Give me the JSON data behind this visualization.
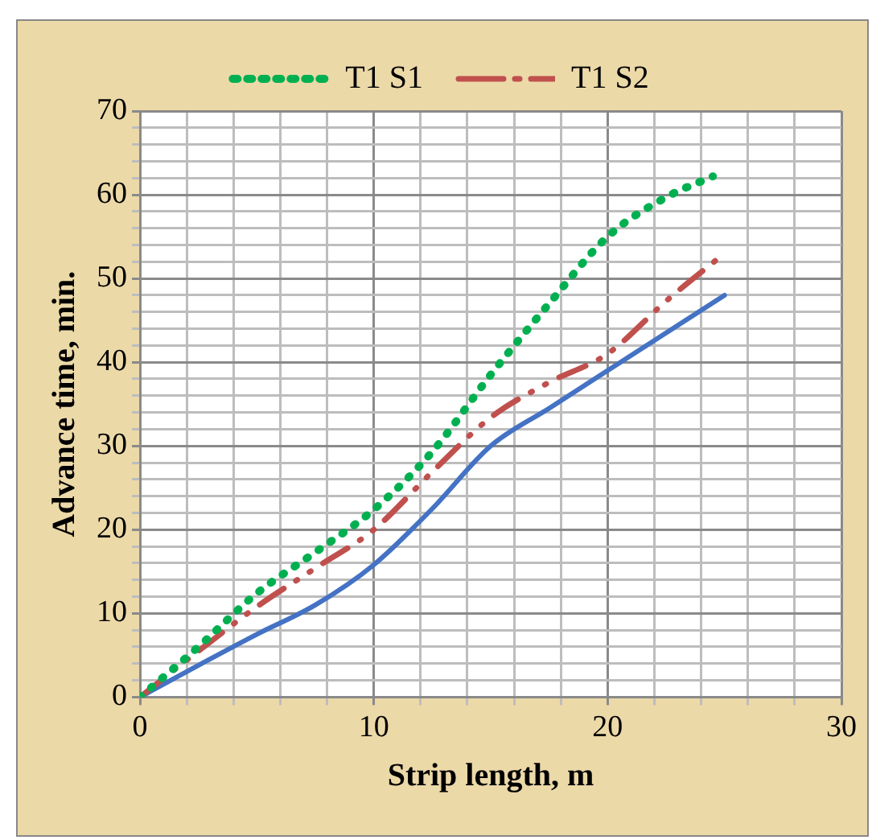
{
  "chart_data": {
    "type": "line",
    "xlabel": "Strip length, m",
    "ylabel": "Advance time, min.",
    "xlim": [
      0,
      30
    ],
    "ylim": [
      0,
      70
    ],
    "xticks": [
      0,
      {
        "value": 2,
        "label": null
      },
      {
        "value": 4,
        "label": null
      },
      {
        "value": 6,
        "label": null
      },
      {
        "value": 8,
        "label": null
      },
      10,
      {
        "value": 12,
        "label": null
      },
      {
        "value": 14,
        "label": null
      },
      {
        "value": 16,
        "label": null
      },
      {
        "value": 18,
        "label": null
      },
      20,
      {
        "value": 22,
        "label": null
      },
      {
        "value": 24,
        "label": null
      },
      {
        "value": 26,
        "label": null
      },
      {
        "value": 28,
        "label": null
      },
      30
    ],
    "yticks": [
      0,
      {
        "value": 2,
        "label": null
      },
      {
        "value": 4,
        "label": null
      },
      {
        "value": 6,
        "label": null
      },
      {
        "value": 8,
        "label": null
      },
      10,
      {
        "value": 12,
        "label": null
      },
      {
        "value": 14,
        "label": null
      },
      {
        "value": 16,
        "label": null
      },
      {
        "value": 18,
        "label": null
      },
      20,
      {
        "value": 22,
        "label": null
      },
      {
        "value": 24,
        "label": null
      },
      {
        "value": 26,
        "label": null
      },
      {
        "value": 28,
        "label": null
      },
      30,
      {
        "value": 32,
        "label": null
      },
      {
        "value": 34,
        "label": null
      },
      {
        "value": 36,
        "label": null
      },
      {
        "value": 38,
        "label": null
      },
      40,
      {
        "value": 42,
        "label": null
      },
      {
        "value": 44,
        "label": null
      },
      {
        "value": 46,
        "label": null
      },
      {
        "value": 48,
        "label": null
      },
      50,
      {
        "value": 52,
        "label": null
      },
      {
        "value": 54,
        "label": null
      },
      {
        "value": 56,
        "label": null
      },
      {
        "value": 58,
        "label": null
      },
      60,
      {
        "value": 62,
        "label": null
      },
      {
        "value": 64,
        "label": null
      },
      {
        "value": 66,
        "label": null
      },
      {
        "value": 68,
        "label": null
      },
      70
    ],
    "grid": true,
    "legend": "top",
    "marker": "none",
    "series": [
      {
        "name": "T1 S1",
        "color": "#00b050",
        "line_style": "dotted",
        "x": [
          0,
          2.5,
          5,
          7.5,
          10,
          12.5,
          15,
          17.5,
          20,
          22.5,
          24.5
        ],
        "values": [
          0,
          6,
          12.4,
          17.3,
          22.4,
          29.3,
          38.5,
          47,
          55,
          59.7,
          62.2
        ]
      },
      {
        "name": "T1 S2",
        "color": "#c0504d",
        "line_style": "dashed",
        "x": [
          0,
          2.5,
          5,
          7.5,
          10,
          12.5,
          15,
          17.5,
          20,
          22.5,
          25
        ],
        "values": [
          0,
          5.5,
          10.8,
          15.4,
          20,
          26.9,
          33.4,
          37.6,
          41,
          47.3,
          53
        ]
      },
      {
        "color": "#4472c4",
        "line_style": "solid",
        "x": [
          0,
          2.5,
          5,
          7.5,
          10,
          12.5,
          15,
          17.5,
          20,
          22.5,
          25
        ],
        "values": [
          0,
          3.8,
          7.5,
          11,
          15.8,
          22.5,
          30,
          34.5,
          39,
          43.5,
          48
        ]
      }
    ]
  }
}
